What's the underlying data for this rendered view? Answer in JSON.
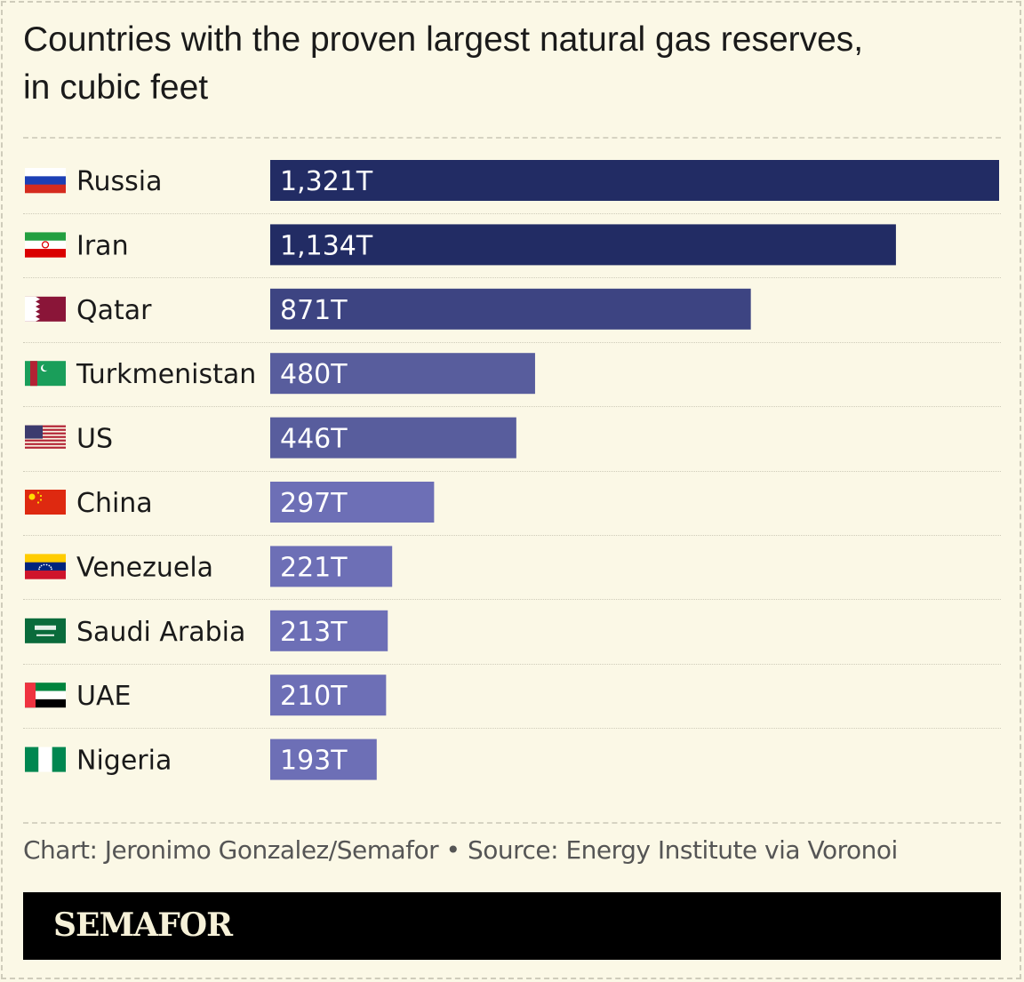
{
  "title_line1": "Countries with the proven largest natural gas reserves,",
  "title_line2": "in cubic feet",
  "source": "Chart: Jeronimo Gonzalez/Semafor • Source: Energy Institute via Voronoi",
  "brand": "SEMAFOR",
  "chart_data": {
    "type": "bar",
    "orientation": "horizontal",
    "categories": [
      "Russia",
      "Iran",
      "Qatar",
      "Turkmenistan",
      "US",
      "China",
      "Venezuela",
      "Saudi Arabia",
      "UAE",
      "Nigeria"
    ],
    "values": [
      1321,
      1134,
      871,
      480,
      446,
      297,
      221,
      213,
      210,
      193
    ],
    "labels": [
      "1,321T",
      "1,134T",
      "871T",
      "480T",
      "446T",
      "297T",
      "221T",
      "213T",
      "210T",
      "193T"
    ],
    "value_unit": "trillion cubic feet",
    "bar_colors": [
      "#222c64",
      "#222c64",
      "#3d4482",
      "#585d9d",
      "#585d9d",
      "#6d6fb6",
      "#6d6fb6",
      "#6d6fb6",
      "#6d6fb6",
      "#6d6fb6"
    ],
    "flag_icons": [
      "russia-flag-icon",
      "iran-flag-icon",
      "qatar-flag-icon",
      "turkmenistan-flag-icon",
      "us-flag-icon",
      "china-flag-icon",
      "venezuela-flag-icon",
      "saudi-arabia-flag-icon",
      "uae-flag-icon",
      "nigeria-flag-icon"
    ],
    "xlim": [
      0,
      1321
    ],
    "grid": false,
    "legend": "none"
  }
}
